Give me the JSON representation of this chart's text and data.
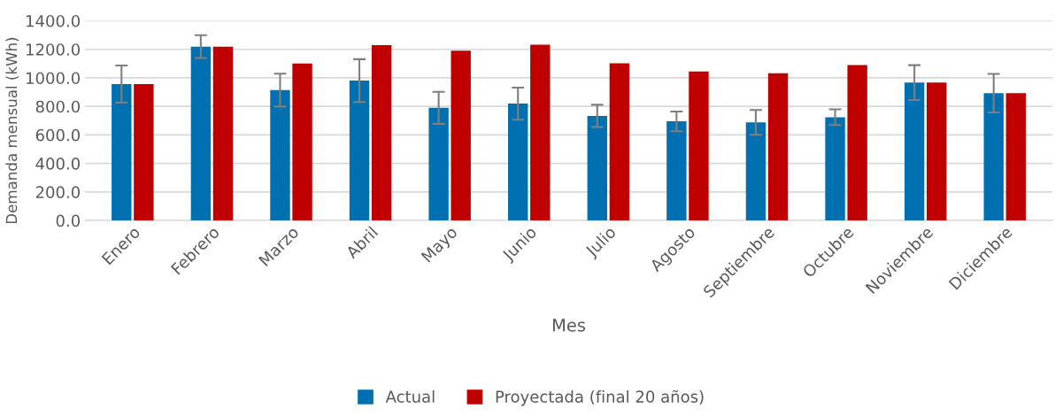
{
  "chart_data": {
    "type": "bar",
    "xlabel": "Mes",
    "ylabel": "Demanda mensual (kWh)",
    "categories": [
      "Enero",
      "Febrero",
      "Marzo",
      "Abril",
      "Mayo",
      "Junio",
      "Julio",
      "Agosto",
      "Septiembre",
      "Octubre",
      "Noviembre",
      "Diciembre"
    ],
    "series": [
      {
        "name": "Actual",
        "color": "#0070b0",
        "values": [
          957,
          1219,
          914,
          981,
          790,
          819,
          733,
          695,
          688,
          724,
          967,
          893
        ],
        "errors": [
          130,
          80,
          115,
          150,
          112,
          112,
          78,
          69,
          87,
          55,
          122,
          135
        ]
      },
      {
        "name": "Proyectada (final 20 años)",
        "color": "#c00000",
        "values": [
          957,
          1219,
          1100,
          1229,
          1190,
          1233,
          1102,
          1045,
          1033,
          1090,
          967,
          893
        ]
      }
    ],
    "ylim": [
      0,
      1400
    ],
    "yticks": [
      {
        "value": 0,
        "label": "0.0"
      },
      {
        "value": 200,
        "label": "200.0"
      },
      {
        "value": 400,
        "label": "400.0"
      },
      {
        "value": 600,
        "label": "600.0"
      },
      {
        "value": 800,
        "label": "800.0"
      },
      {
        "value": 1000,
        "label": "1000.0"
      },
      {
        "value": 1200,
        "label": "1200.0"
      },
      {
        "value": 1400,
        "label": "1400.0"
      }
    ],
    "grid": "y",
    "legend": "bottom"
  }
}
